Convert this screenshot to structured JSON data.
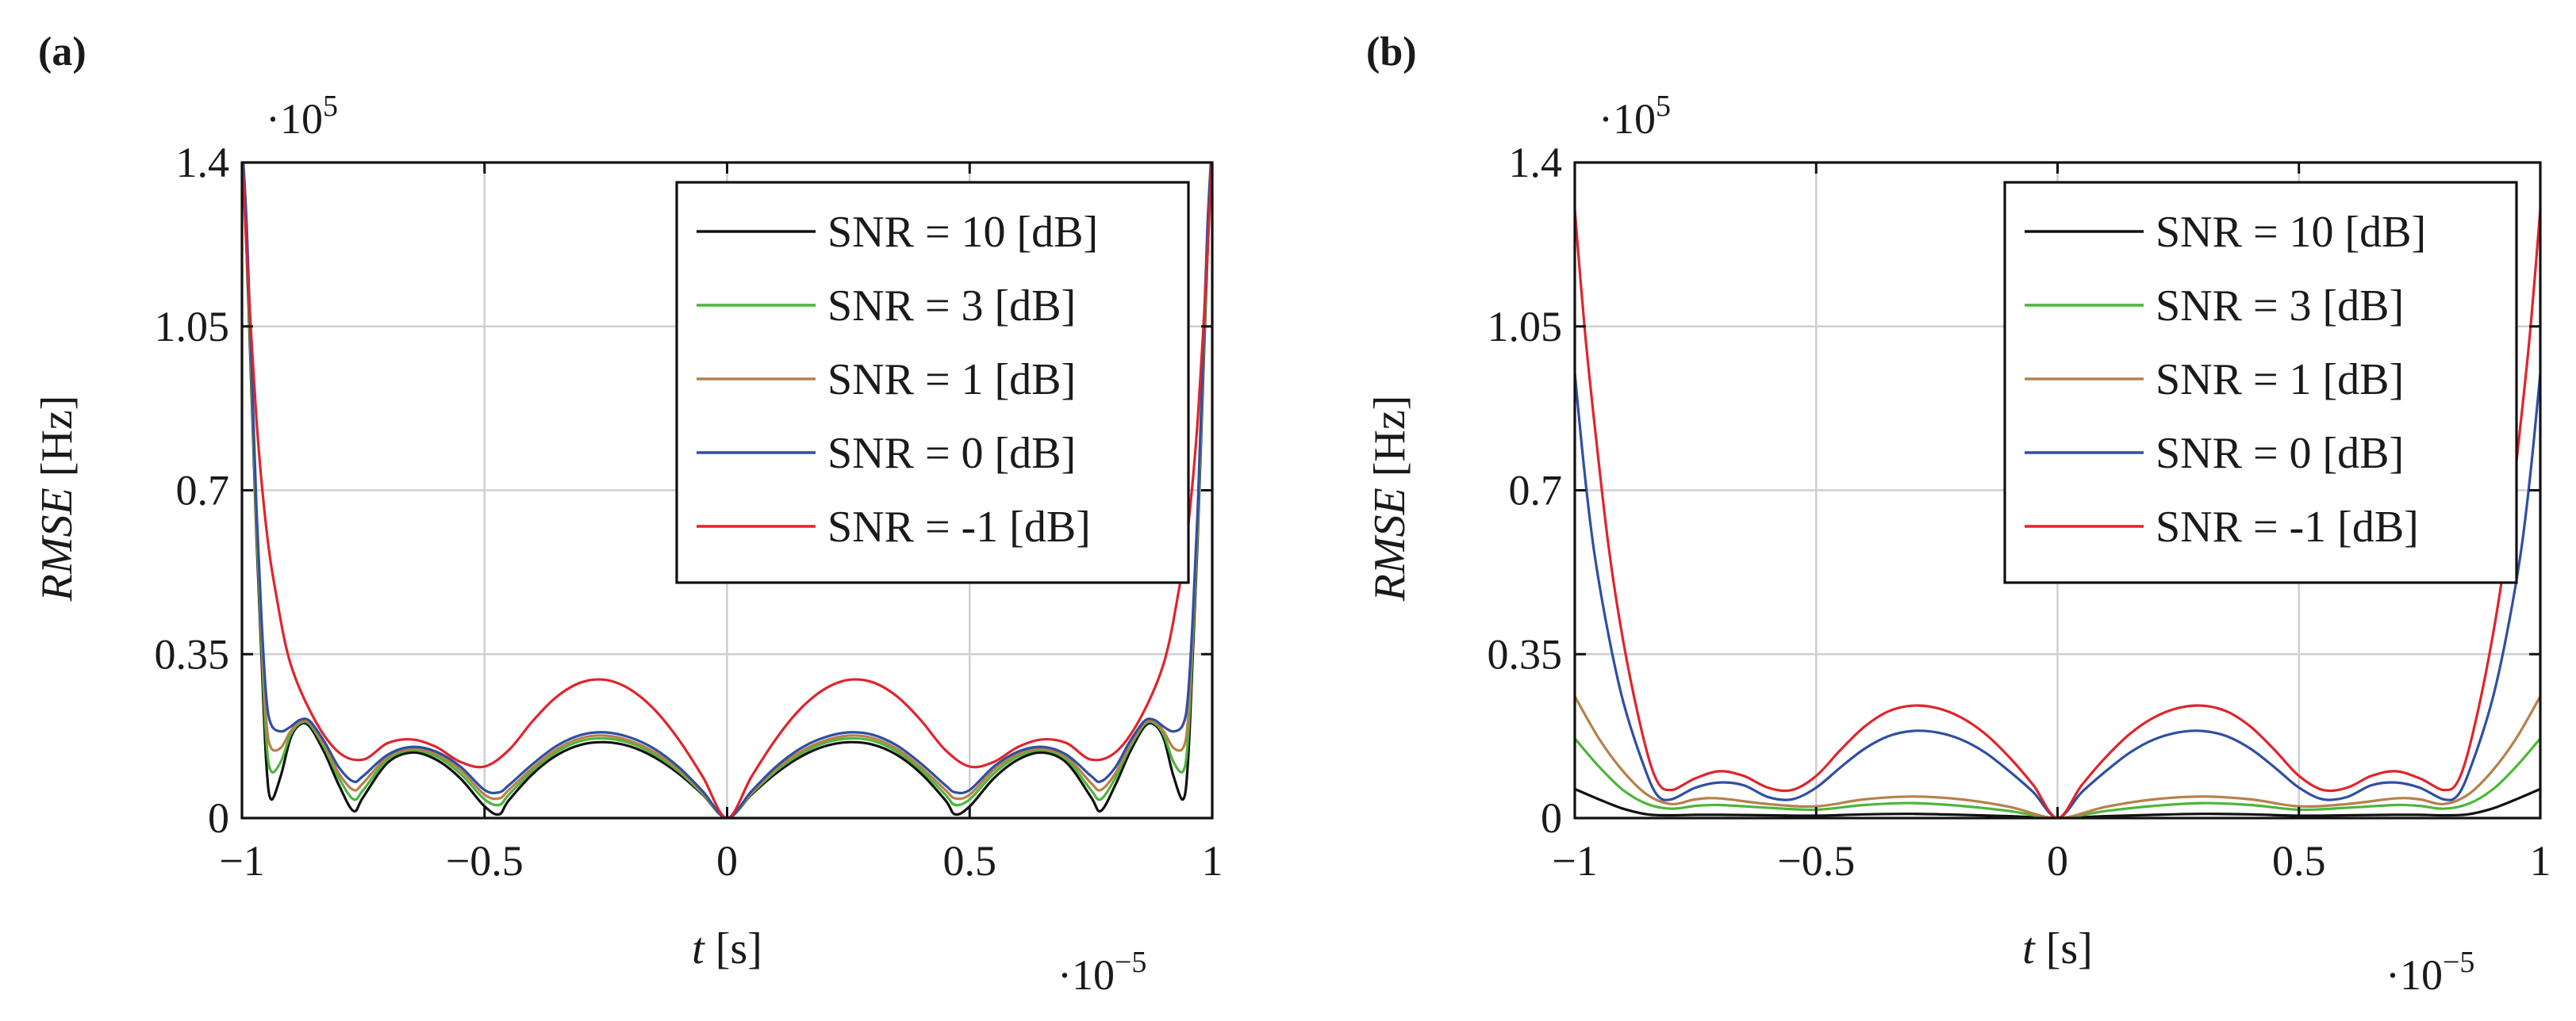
{
  "figure": {
    "panels": [
      "(a)",
      "(b)"
    ]
  },
  "colors": {
    "snr10": "#111111",
    "snr3": "#4cb63a",
    "snr1": "#b7804b",
    "snr0": "#2e4fa3",
    "snrm1": "#e0242b",
    "grid": "#cfcfcf",
    "axis": "#111111"
  },
  "chart_data": [
    {
      "panel": "(a)",
      "type": "line",
      "title": "",
      "xlabel_italic": "t",
      "xlabel_unit": " [s]",
      "ylabel_italic": "RMSE",
      "ylabel_unit": " [Hz]",
      "x_scale_base": "·10",
      "x_scale_exp": "−5",
      "y_scale_base": "·10",
      "y_scale_exp": "5",
      "xlim": [
        -1,
        1
      ],
      "ylim": [
        0,
        1.4
      ],
      "xticks": [
        -1,
        -0.5,
        0,
        0.5,
        1
      ],
      "xtick_labels": [
        "−1",
        "−0.5",
        "0",
        "0.5",
        "1"
      ],
      "yticks": [
        0,
        0.35,
        0.7,
        1.05,
        1.4
      ],
      "ytick_labels": [
        "0",
        "0.35",
        "0.7",
        "1.05",
        "1.4"
      ],
      "grid": true,
      "legend_position": "top-right",
      "series": [
        {
          "name": "SNR = 10 [dB]",
          "key": "snr10",
          "x": [
            0,
            0.05,
            0.1,
            0.15,
            0.2,
            0.25,
            0.3,
            0.35,
            0.4,
            0.45,
            0.47,
            0.5,
            0.55,
            0.6,
            0.65,
            0.7,
            0.75,
            0.77,
            0.8,
            0.83,
            0.86,
            0.88,
            0.9,
            0.92,
            0.94,
            0.95,
            0.96,
            0.97,
            0.98,
            0.99,
            1.0
          ],
          "y": [
            0,
            0.05,
            0.095,
            0.13,
            0.153,
            0.162,
            0.157,
            0.135,
            0.095,
            0.038,
            0.008,
            0.025,
            0.085,
            0.125,
            0.14,
            0.118,
            0.045,
            0.015,
            0.07,
            0.14,
            0.195,
            0.2,
            0.17,
            0.09,
            0.04,
            0.12,
            0.35,
            0.6,
            0.9,
            1.2,
            1.45
          ]
        },
        {
          "name": "SNR = 3 [dB]",
          "key": "snr3",
          "x": [
            0,
            0.05,
            0.1,
            0.15,
            0.2,
            0.25,
            0.3,
            0.35,
            0.4,
            0.45,
            0.47,
            0.5,
            0.55,
            0.6,
            0.65,
            0.7,
            0.75,
            0.77,
            0.8,
            0.83,
            0.86,
            0.88,
            0.9,
            0.92,
            0.94,
            0.95,
            0.96,
            0.97,
            0.98,
            0.99,
            1.0
          ],
          "y": [
            0,
            0.052,
            0.1,
            0.136,
            0.16,
            0.17,
            0.165,
            0.142,
            0.102,
            0.05,
            0.028,
            0.04,
            0.095,
            0.132,
            0.145,
            0.125,
            0.06,
            0.04,
            0.085,
            0.15,
            0.2,
            0.203,
            0.178,
            0.12,
            0.1,
            0.17,
            0.38,
            0.62,
            0.92,
            1.22,
            1.45
          ]
        },
        {
          "name": "SNR = 1 [dB]",
          "key": "snr1",
          "x": [
            0,
            0.05,
            0.1,
            0.15,
            0.2,
            0.25,
            0.3,
            0.35,
            0.4,
            0.45,
            0.47,
            0.5,
            0.55,
            0.6,
            0.65,
            0.7,
            0.75,
            0.77,
            0.8,
            0.83,
            0.86,
            0.88,
            0.9,
            0.92,
            0.94,
            0.95,
            0.96,
            0.97,
            0.98,
            0.99,
            1.0
          ],
          "y": [
            0,
            0.054,
            0.104,
            0.141,
            0.165,
            0.176,
            0.171,
            0.148,
            0.108,
            0.06,
            0.042,
            0.05,
            0.103,
            0.137,
            0.148,
            0.13,
            0.075,
            0.06,
            0.095,
            0.156,
            0.203,
            0.206,
            0.185,
            0.15,
            0.15,
            0.21,
            0.4,
            0.64,
            0.94,
            1.24,
            1.45
          ]
        },
        {
          "name": "SNR = 0 [dB]",
          "key": "snr0",
          "x": [
            0,
            0.05,
            0.1,
            0.15,
            0.2,
            0.25,
            0.3,
            0.35,
            0.4,
            0.45,
            0.47,
            0.5,
            0.55,
            0.6,
            0.65,
            0.7,
            0.75,
            0.77,
            0.8,
            0.83,
            0.86,
            0.88,
            0.9,
            0.92,
            0.94,
            0.95,
            0.96,
            0.97,
            0.98,
            0.99,
            1.0
          ],
          "y": [
            0,
            0.057,
            0.109,
            0.148,
            0.172,
            0.183,
            0.178,
            0.155,
            0.116,
            0.07,
            0.055,
            0.06,
            0.11,
            0.142,
            0.152,
            0.135,
            0.09,
            0.078,
            0.108,
            0.163,
            0.207,
            0.21,
            0.195,
            0.185,
            0.2,
            0.26,
            0.43,
            0.66,
            0.96,
            1.26,
            1.45
          ]
        },
        {
          "name": "SNR = -1 [dB]",
          "key": "snrm1",
          "x": [
            0,
            0.05,
            0.1,
            0.15,
            0.2,
            0.25,
            0.3,
            0.35,
            0.4,
            0.45,
            0.5,
            0.55,
            0.6,
            0.65,
            0.7,
            0.75,
            0.8,
            0.85,
            0.9,
            0.93,
            0.95,
            0.97,
            0.99,
            1.0
          ],
          "y": [
            0,
            0.088,
            0.168,
            0.232,
            0.275,
            0.295,
            0.29,
            0.26,
            0.208,
            0.145,
            0.11,
            0.12,
            0.152,
            0.168,
            0.16,
            0.125,
            0.14,
            0.21,
            0.33,
            0.48,
            0.62,
            0.85,
            1.2,
            1.42
          ]
        }
      ]
    },
    {
      "panel": "(b)",
      "type": "line",
      "title": "",
      "xlabel_italic": "t",
      "xlabel_unit": " [s]",
      "ylabel_italic": "RMSE",
      "ylabel_unit": " [Hz]",
      "x_scale_base": "·10",
      "x_scale_exp": "−5",
      "y_scale_base": "·10",
      "y_scale_exp": "5",
      "xlim": [
        -1,
        1
      ],
      "ylim": [
        0,
        1.4
      ],
      "xticks": [
        -1,
        -0.5,
        0,
        0.5,
        1
      ],
      "xtick_labels": [
        "−1",
        "−0.5",
        "0",
        "0.5",
        "1"
      ],
      "yticks": [
        0,
        0.35,
        0.7,
        1.05,
        1.4
      ],
      "ytick_labels": [
        "0",
        "0.35",
        "0.7",
        "1.05",
        "1.4"
      ],
      "grid": true,
      "legend_position": "top-right",
      "series": [
        {
          "name": "SNR = 10 [dB]",
          "key": "snr10",
          "x": [
            0,
            0.1,
            0.2,
            0.3,
            0.4,
            0.5,
            0.6,
            0.7,
            0.75,
            0.8,
            0.85,
            0.9,
            0.95,
            1.0
          ],
          "y": [
            0,
            0.004,
            0.007,
            0.009,
            0.008,
            0.005,
            0.006,
            0.007,
            0.007,
            0.006,
            0.008,
            0.02,
            0.04,
            0.062
          ]
        },
        {
          "name": "SNR = 3 [dB]",
          "key": "snr3",
          "x": [
            0,
            0.1,
            0.2,
            0.3,
            0.4,
            0.5,
            0.6,
            0.7,
            0.75,
            0.8,
            0.85,
            0.9,
            0.95,
            1.0
          ],
          "y": [
            0,
            0.015,
            0.026,
            0.032,
            0.028,
            0.018,
            0.022,
            0.028,
            0.026,
            0.02,
            0.03,
            0.06,
            0.11,
            0.17
          ]
        },
        {
          "name": "SNR = 1 [dB]",
          "key": "snr1",
          "x": [
            0,
            0.1,
            0.2,
            0.3,
            0.4,
            0.5,
            0.6,
            0.7,
            0.75,
            0.8,
            0.85,
            0.9,
            0.95,
            1.0
          ],
          "y": [
            0,
            0.024,
            0.04,
            0.046,
            0.04,
            0.025,
            0.03,
            0.042,
            0.04,
            0.03,
            0.05,
            0.1,
            0.17,
            0.26
          ]
        },
        {
          "name": "SNR = 0 [dB]",
          "key": "snr0",
          "x": [
            0,
            0.05,
            0.1,
            0.15,
            0.2,
            0.25,
            0.3,
            0.35,
            0.4,
            0.45,
            0.5,
            0.55,
            0.6,
            0.65,
            0.7,
            0.75,
            0.8,
            0.83,
            0.86,
            0.9,
            0.93,
            0.96,
            0.98,
            1.0
          ],
          "y": [
            0,
            0.055,
            0.1,
            0.14,
            0.168,
            0.183,
            0.186,
            0.175,
            0.148,
            0.108,
            0.065,
            0.04,
            0.045,
            0.07,
            0.076,
            0.065,
            0.04,
            0.05,
            0.12,
            0.25,
            0.39,
            0.57,
            0.74,
            0.95
          ]
        },
        {
          "name": "SNR = -1 [dB]",
          "key": "snrm1",
          "x": [
            0,
            0.05,
            0.1,
            0.15,
            0.2,
            0.25,
            0.3,
            0.35,
            0.4,
            0.45,
            0.5,
            0.55,
            0.6,
            0.65,
            0.7,
            0.75,
            0.8,
            0.83,
            0.86,
            0.9,
            0.93,
            0.96,
            0.98,
            1.0
          ],
          "y": [
            0,
            0.07,
            0.13,
            0.18,
            0.215,
            0.235,
            0.24,
            0.228,
            0.195,
            0.145,
            0.09,
            0.06,
            0.065,
            0.09,
            0.1,
            0.085,
            0.06,
            0.08,
            0.18,
            0.38,
            0.58,
            0.85,
            1.05,
            1.3
          ]
        }
      ]
    }
  ]
}
